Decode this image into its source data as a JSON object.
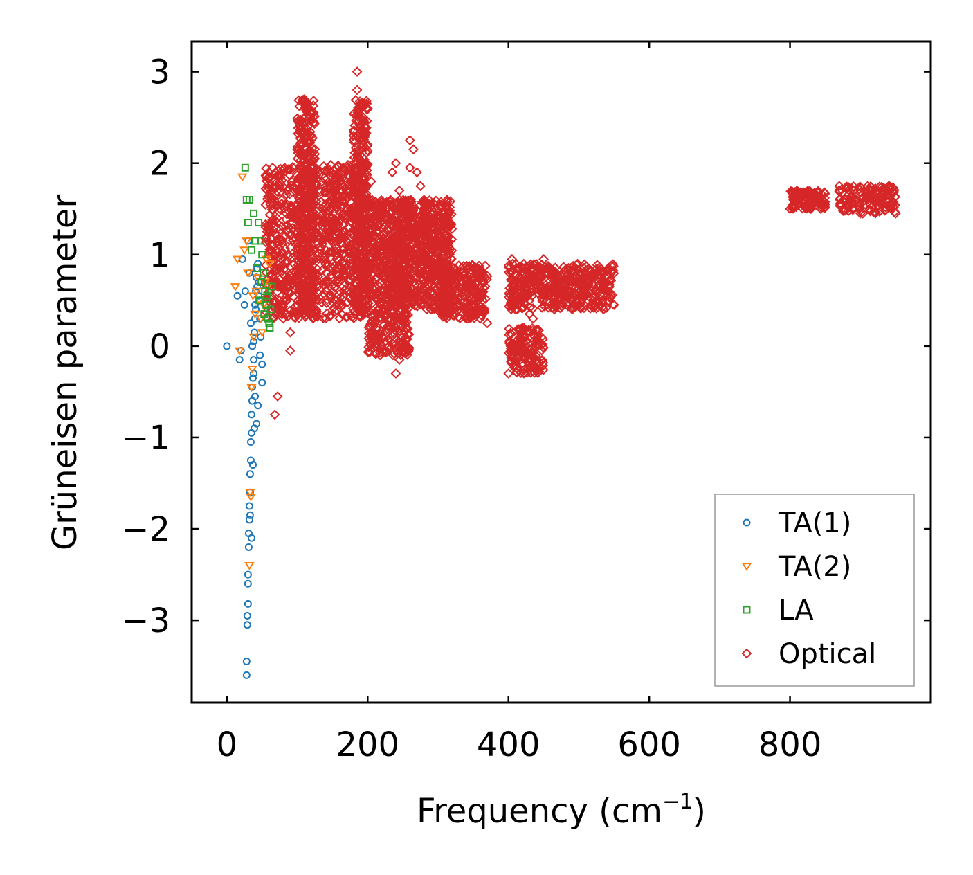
{
  "chart_data": {
    "type": "scatter",
    "title": "",
    "xlabel": "Frequency (cm",
    "xlabel_sup": "−1",
    "xlabel_suffix": ")",
    "ylabel": "Grüneisen parameter",
    "xlim": [
      -50,
      1000
    ],
    "ylim": [
      -3.9,
      3.33
    ],
    "xticks": [
      0,
      200,
      400,
      600,
      800
    ],
    "xtick_labels": [
      "0",
      "200",
      "400",
      "600",
      "800"
    ],
    "yticks": [
      -3,
      -2,
      -1,
      0,
      1,
      2,
      3
    ],
    "ytick_labels": [
      "−3",
      "−2",
      "−1",
      "0",
      "1",
      "2",
      "3"
    ],
    "grid": false,
    "legend_position": "bottom-right",
    "series": [
      {
        "name": "TA(1)",
        "marker": "circle",
        "color": "#1f77b4",
        "x": [
          0,
          15,
          18,
          20,
          22,
          25,
          26,
          28,
          28,
          29,
          29,
          30,
          30,
          30,
          31,
          31,
          32,
          32,
          33,
          33,
          34,
          34,
          35,
          35,
          36,
          36,
          37,
          38,
          38,
          39,
          40,
          40,
          41,
          42,
          43,
          44,
          45,
          46,
          47,
          48,
          50,
          50,
          30,
          32,
          34,
          36,
          38,
          40,
          42,
          44,
          33,
          35,
          37,
          39,
          41,
          43,
          45,
          47
        ],
        "y": [
          0,
          0.55,
          -0.15,
          -0.05,
          0.95,
          0.45,
          0.6,
          -3.6,
          -3.45,
          -3.05,
          -2.95,
          -2.82,
          -2.6,
          -2.5,
          -2.2,
          -2.05,
          -1.9,
          -1.75,
          -1.6,
          -1.4,
          -1.25,
          -1.05,
          -0.95,
          -0.75,
          -0.6,
          -0.45,
          -0.35,
          -0.15,
          0.05,
          0.15,
          0.3,
          0.45,
          0.6,
          0.75,
          0.85,
          0.9,
          0.7,
          0.5,
          0.3,
          0.1,
          -0.2,
          -0.4,
          1.15,
          0.8,
          0.25,
          0.0,
          -0.3,
          -0.55,
          -0.85,
          -0.65,
          -1.85,
          -2.1,
          -1.3,
          -0.9,
          0.4,
          0.65,
          0.55,
          -0.1
        ]
      },
      {
        "name": "TA(2)",
        "marker": "triangle-down",
        "color": "#ff7f0e",
        "x": [
          12,
          15,
          18,
          22,
          25,
          28,
          30,
          32,
          33,
          35,
          36,
          38,
          40,
          42,
          44,
          46,
          48,
          50,
          52,
          54,
          56,
          58,
          60,
          34,
          37
        ],
        "y": [
          0.65,
          0.95,
          -0.05,
          1.85,
          1.05,
          1.15,
          0.8,
          -2.4,
          -1.6,
          -0.45,
          -0.25,
          0.1,
          0.35,
          0.6,
          0.75,
          0.5,
          0.3,
          0.15,
          0.45,
          0.7,
          0.95,
          0.65,
          0.9,
          -1.65,
          0.55
        ]
      },
      {
        "name": "LA",
        "marker": "square",
        "color": "#2ca02c",
        "x": [
          26,
          28,
          30,
          32,
          35,
          38,
          40,
          42,
          45,
          48,
          50,
          52,
          54,
          56,
          58,
          60,
          62,
          64,
          46,
          49,
          53,
          57,
          61
        ],
        "y": [
          1.95,
          1.6,
          1.35,
          1.6,
          1.05,
          1.45,
          1.15,
          0.85,
          1.35,
          1.15,
          1.0,
          0.8,
          0.6,
          0.45,
          0.3,
          0.25,
          0.4,
          0.65,
          0.5,
          0.7,
          0.35,
          0.55,
          0.2
        ]
      },
      {
        "name": "Optical",
        "marker": "diamond",
        "color": "#d62728",
        "x": [
          55,
          60,
          65,
          70,
          75,
          80,
          85,
          90,
          95,
          100,
          105,
          110,
          112,
          115,
          120,
          125,
          130,
          135,
          140,
          145,
          150,
          155,
          160,
          165,
          170,
          175,
          180,
          185,
          190,
          195,
          200,
          205,
          210,
          215,
          220,
          225,
          230,
          235,
          240,
          245,
          250,
          255,
          260,
          265,
          270,
          275,
          280,
          285,
          290,
          295,
          300,
          305,
          310,
          315,
          320,
          330,
          340,
          350,
          360,
          370,
          400,
          405,
          410,
          415,
          420,
          425,
          430,
          435,
          440,
          445,
          450,
          460,
          470,
          480,
          490,
          500,
          510,
          520,
          530,
          540,
          550,
          800,
          810,
          820,
          830,
          840,
          850,
          870,
          880,
          890,
          900,
          910,
          920,
          930,
          940,
          950,
          68,
          72,
          90,
          100,
          125,
          140,
          160,
          175,
          185,
          195,
          240,
          245,
          250,
          265,
          280,
          310,
          405,
          420,
          430,
          440,
          118,
          150,
          170,
          200,
          230,
          260
        ],
        "y": [
          1.3,
          1.85,
          1.95,
          1.75,
          1.5,
          0.3,
          1.55,
          0.15,
          0.9,
          2.15,
          2.4,
          2.7,
          2.6,
          2.4,
          2.3,
          2.1,
          1.9,
          1.5,
          1.35,
          1.2,
          0.85,
          0.7,
          0.6,
          0.9,
          1.1,
          1.45,
          2.3,
          3.0,
          2.65,
          2.45,
          2.2,
          1.8,
          1.3,
          1.0,
          1.2,
          0.8,
          1.1,
          1.9,
          2.0,
          1.7,
          0.6,
          0.2,
          2.25,
          2.15,
          1.9,
          1.75,
          1.6,
          1.5,
          1.35,
          1.2,
          1.0,
          0.85,
          0.7,
          0.6,
          0.5,
          0.45,
          0.4,
          0.35,
          0.3,
          0.25,
          -0.3,
          0.0,
          0.4,
          0.7,
          0.85,
          0.6,
          0.5,
          0.3,
          0.05,
          0.8,
          0.95,
          0.85,
          0.75,
          0.6,
          0.5,
          0.45,
          0.55,
          0.5,
          0.6,
          0.55,
          0.45,
          1.5,
          1.7,
          1.65,
          1.6,
          1.58,
          1.55,
          1.75,
          1.72,
          1.7,
          1.68,
          1.64,
          1.6,
          1.56,
          1.52,
          1.45,
          -0.75,
          -0.55,
          -0.05,
          0.45,
          2.05,
          1.5,
          0.7,
          1.8,
          2.8,
          2.4,
          -0.3,
          -0.15,
          0.9,
          1.5,
          1.3,
          1.2,
          0.95,
          0.2,
          0.35,
          -0.15,
          1.6,
          0.9,
          1.7,
          2.6,
          0.5,
          1.95
        ]
      }
    ],
    "dense_regions": [
      {
        "series": "Optical",
        "x_range": [
          55,
          200
        ],
        "y_range": [
          0.3,
          2.0
        ]
      },
      {
        "series": "Optical",
        "x_range": [
          100,
          125
        ],
        "y_range": [
          0.3,
          2.7
        ]
      },
      {
        "series": "Optical",
        "x_range": [
          180,
          200
        ],
        "y_range": [
          0.4,
          2.7
        ]
      },
      {
        "series": "Optical",
        "x_range": [
          200,
          260
        ],
        "y_range": [
          -0.1,
          1.6
        ]
      },
      {
        "series": "Optical",
        "x_range": [
          240,
          320
        ],
        "y_range": [
          0.4,
          1.6
        ]
      },
      {
        "series": "Optical",
        "x_range": [
          300,
          370
        ],
        "y_range": [
          0.3,
          0.9
        ]
      },
      {
        "series": "Optical",
        "x_range": [
          400,
          450
        ],
        "y_range": [
          -0.3,
          0.2
        ]
      },
      {
        "series": "Optical",
        "x_range": [
          400,
          550
        ],
        "y_range": [
          0.4,
          0.9
        ]
      },
      {
        "series": "Optical",
        "x_range": [
          800,
          850
        ],
        "y_range": [
          1.5,
          1.7
        ]
      },
      {
        "series": "Optical",
        "x_range": [
          870,
          950
        ],
        "y_range": [
          1.45,
          1.75
        ]
      }
    ]
  }
}
